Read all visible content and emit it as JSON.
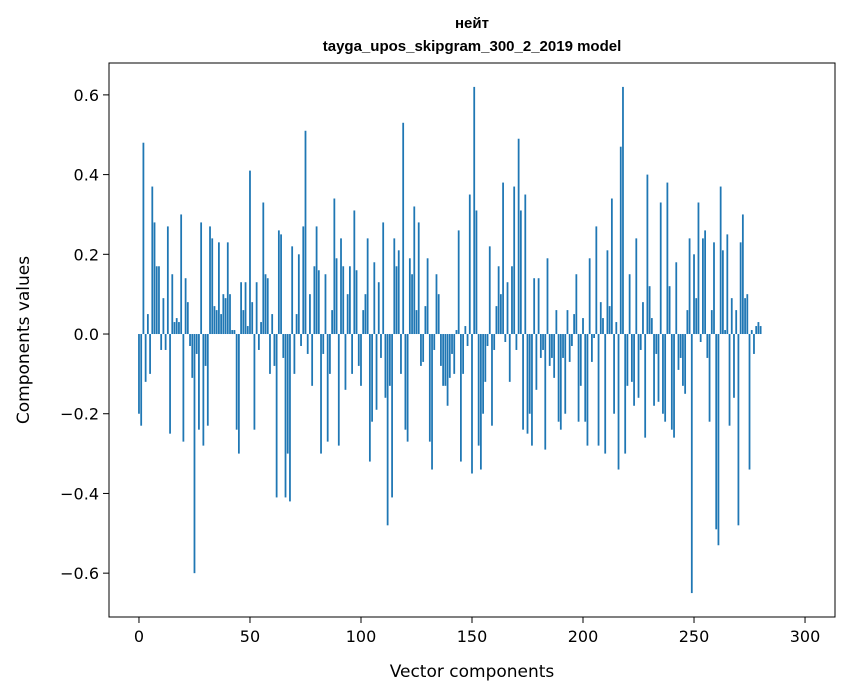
{
  "chart_data": {
    "type": "bar",
    "title": "нейт",
    "subtitle": "tayga_upos_skipgram_300_2_2019 model",
    "xlabel": "Vector components",
    "ylabel": "Components values",
    "xlim": [
      -13.5,
      313.5
    ],
    "ylim": [
      -0.71,
      0.68
    ],
    "xticks": [
      {
        "value": 0,
        "label": "0"
      },
      {
        "value": 50,
        "label": "50"
      },
      {
        "value": 100,
        "label": "100"
      },
      {
        "value": 150,
        "label": "150"
      },
      {
        "value": 200,
        "label": "200"
      },
      {
        "value": 250,
        "label": "250"
      },
      {
        "value": 300,
        "label": "300"
      }
    ],
    "yticks": [
      {
        "value": -0.6,
        "label": "−0.6"
      },
      {
        "value": -0.4,
        "label": "−0.4"
      },
      {
        "value": -0.2,
        "label": "−0.2"
      },
      {
        "value": 0.0,
        "label": "0.0"
      },
      {
        "value": 0.2,
        "label": "0.2"
      },
      {
        "value": 0.4,
        "label": "0.4"
      },
      {
        "value": 0.6,
        "label": "0.6"
      }
    ],
    "grid": false,
    "legend": "none",
    "bar_color": "#1f77b4",
    "values": [
      -0.2,
      -0.23,
      0.48,
      -0.12,
      0.05,
      -0.1,
      0.37,
      0.28,
      0.17,
      0.17,
      -0.04,
      0.09,
      -0.04,
      0.27,
      -0.25,
      0.15,
      0.03,
      0.04,
      0.03,
      0.3,
      -0.27,
      0.14,
      0.08,
      -0.03,
      -0.11,
      -0.6,
      -0.05,
      -0.24,
      0.28,
      -0.28,
      -0.08,
      -0.23,
      0.27,
      0.24,
      0.07,
      0.06,
      0.23,
      0.05,
      0.1,
      0.09,
      0.23,
      0.1,
      0.01,
      0.01,
      -0.24,
      -0.3,
      0.13,
      0.06,
      0.13,
      0.02,
      0.41,
      0.08,
      -0.24,
      0.13,
      -0.04,
      0.03,
      0.33,
      0.15,
      0.14,
      -0.1,
      0.05,
      -0.08,
      -0.41,
      0.26,
      0.25,
      -0.06,
      -0.41,
      -0.3,
      -0.42,
      0.22,
      -0.1,
      0.05,
      0.2,
      -0.03,
      0.27,
      0.51,
      -0.05,
      0.1,
      -0.13,
      0.17,
      0.27,
      0.16,
      -0.3,
      -0.05,
      0.15,
      -0.27,
      -0.1,
      0.06,
      0.34,
      0.19,
      -0.28,
      0.24,
      0.17,
      -0.14,
      0.1,
      0.17,
      -0.1,
      0.31,
      0.16,
      -0.08,
      -0.13,
      0.06,
      0.1,
      0.24,
      -0.32,
      -0.22,
      0.18,
      -0.19,
      0.13,
      -0.06,
      0.28,
      -0.16,
      -0.48,
      -0.13,
      -0.41,
      0.24,
      0.17,
      0.21,
      -0.1,
      0.53,
      -0.24,
      -0.27,
      0.19,
      0.15,
      0.32,
      0.06,
      0.28,
      -0.08,
      -0.07,
      0.07,
      0.19,
      -0.27,
      -0.34,
      -0.04,
      0.15,
      0.1,
      -0.08,
      -0.13,
      -0.13,
      -0.18,
      -0.11,
      -0.05,
      -0.1,
      0.01,
      0.26,
      -0.32,
      -0.1,
      0.02,
      -0.03,
      0.35,
      -0.35,
      0.62,
      0.31,
      -0.28,
      -0.34,
      -0.2,
      -0.12,
      -0.03,
      0.22,
      -0.23,
      -0.04,
      0.07,
      0.17,
      0.1,
      0.38,
      -0.02,
      0.13,
      -0.12,
      0.17,
      0.37,
      -0.04,
      0.49,
      0.31,
      -0.24,
      0.35,
      -0.25,
      -0.2,
      -0.28,
      0.14,
      -0.14,
      0.14,
      -0.06,
      -0.04,
      -0.29,
      0.19,
      -0.08,
      -0.06,
      -0.11,
      0.06,
      -0.22,
      -0.24,
      -0.06,
      -0.2,
      0.06,
      -0.07,
      -0.03,
      0.05,
      0.15,
      -0.22,
      -0.13,
      0.04,
      -0.22,
      -0.28,
      0.19,
      -0.07,
      -0.01,
      0.27,
      -0.28,
      0.08,
      0.04,
      -0.3,
      0.21,
      0.07,
      0.34,
      -0.2,
      0.03,
      -0.34,
      0.47,
      0.62,
      -0.3,
      -0.13,
      0.15,
      -0.12,
      -0.18,
      0.24,
      -0.16,
      -0.04,
      0.08,
      -0.26,
      0.4,
      0.12,
      0.04,
      -0.18,
      -0.05,
      -0.17,
      0.33,
      -0.2,
      -0.22,
      0.38,
      0.12,
      -0.24,
      -0.26,
      0.18,
      -0.09,
      -0.06,
      -0.13,
      -0.15,
      0.06,
      0.24,
      -0.65,
      0.2,
      0.09,
      0.33,
      -0.02,
      0.24,
      0.26,
      -0.06,
      -0.22,
      0.06,
      0.23,
      -0.49,
      -0.53,
      0.37,
      0.21,
      0.01,
      0.25,
      -0.23,
      0.09,
      -0.16,
      0.06,
      -0.48,
      0.23,
      0.3,
      0.09,
      0.1,
      -0.34,
      0.01,
      -0.05,
      0.02,
      0.03,
      0.02
    ]
  }
}
